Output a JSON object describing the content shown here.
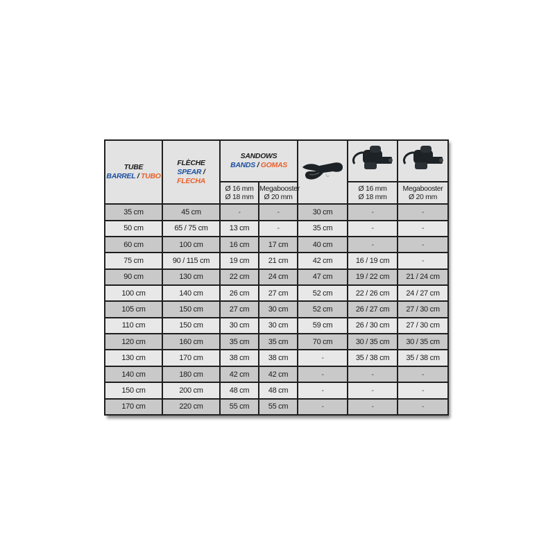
{
  "header": {
    "tube": {
      "title": "TUBE",
      "en": "BARREL",
      "sep": "/",
      "es": "TUBO"
    },
    "fleche": {
      "title": "FLÈCHE",
      "en": "SPEAR",
      "sep": "/",
      "es": "FLECHA"
    },
    "sandows": {
      "title": "SANDOWS",
      "en": "BANDS",
      "sep": "/",
      "es": "GOMAS"
    },
    "sandow_sub1": {
      "line1": "Ø 16 mm",
      "line2": "Ø 18 mm"
    },
    "sandow_sub2": {
      "line1": "Megabooster",
      "line2": "Ø 20 mm"
    },
    "icon_col1": "wishbone-icon",
    "icon_col2": "slider-icon",
    "icon_col3": "slider-icon",
    "col6_sub": {
      "line1": "Ø 16 mm",
      "line2": "Ø 18 mm"
    },
    "col7_sub": {
      "line1": "Megabooster",
      "line2": "Ø 20 mm"
    }
  },
  "colors": {
    "blue": "#1c4fa0",
    "orange": "#e8602a",
    "row_dark": "#c9c9c9",
    "row_light": "#e8e8e8"
  },
  "rows": [
    [
      "35 cm",
      "45 cm",
      "-",
      "-",
      "30 cm",
      "-",
      "-"
    ],
    [
      "50 cm",
      "65 / 75 cm",
      "13 cm",
      "-",
      "35 cm",
      "-",
      "-"
    ],
    [
      "60 cm",
      "100 cm",
      "16 cm",
      "17 cm",
      "40 cm",
      "-",
      "-"
    ],
    [
      "75 cm",
      "90 / 115 cm",
      "19 cm",
      "21 cm",
      "42 cm",
      "16 / 19 cm",
      "-"
    ],
    [
      "90 cm",
      "130 cm",
      "22 cm",
      "24 cm",
      "47 cm",
      "19 / 22 cm",
      "21 / 24 cm"
    ],
    [
      "100 cm",
      "140 cm",
      "26 cm",
      "27 cm",
      "52 cm",
      "22 / 26 cm",
      "24 / 27 cm"
    ],
    [
      "105 cm",
      "150 cm",
      "27 cm",
      "30 cm",
      "52 cm",
      "26 / 27 cm",
      "27 / 30 cm"
    ],
    [
      "110 cm",
      "150 cm",
      "30 cm",
      "30 cm",
      "59 cm",
      "26 / 30 cm",
      "27 / 30 cm"
    ],
    [
      "120 cm",
      "160 cm",
      "35 cm",
      "35 cm",
      "70 cm",
      "30 / 35 cm",
      "30 / 35 cm"
    ],
    [
      "130 cm",
      "170 cm",
      "38 cm",
      "38 cm",
      "-",
      "35 / 38 cm",
      "35 / 38 cm"
    ],
    [
      "140 cm",
      "180 cm",
      "42 cm",
      "42 cm",
      "-",
      "-",
      "-"
    ],
    [
      "150 cm",
      "200 cm",
      "48 cm",
      "48 cm",
      "-",
      "-",
      "-"
    ],
    [
      "170 cm",
      "220 cm",
      "55 cm",
      "55 cm",
      "-",
      "-",
      "-"
    ]
  ]
}
